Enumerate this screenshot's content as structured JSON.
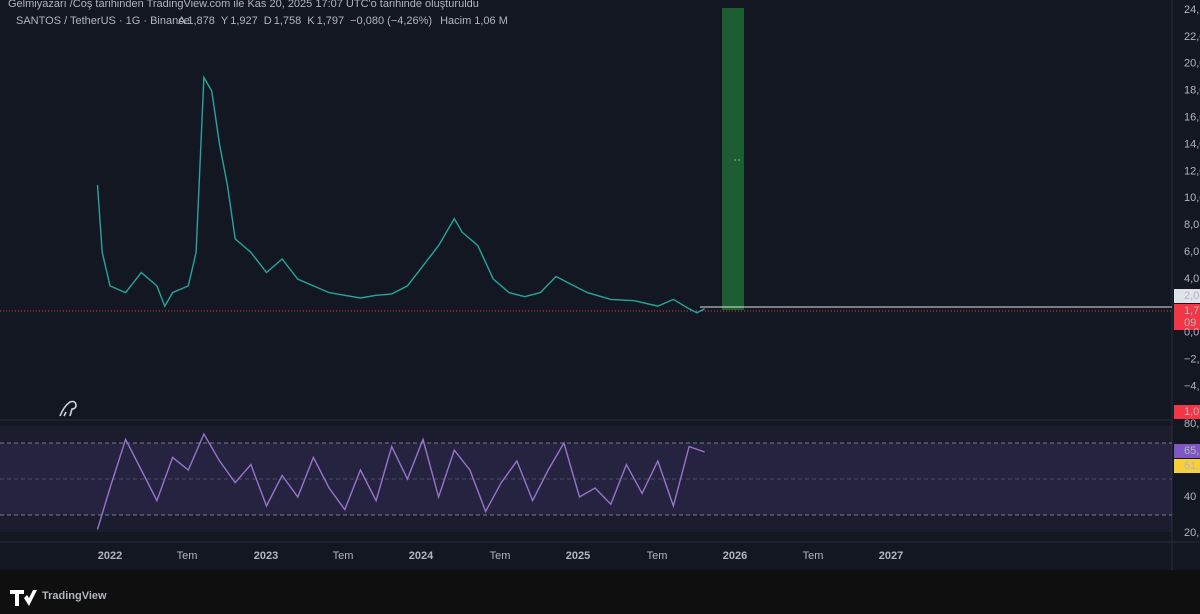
{
  "header": {
    "top_note": "Gelmiyazarı /Coş tarihinden TradingView.com ile Kas 20, 2025 17:07 UTC'o tarihinde oluşturuldu",
    "symbol": "SANTOS / TetherUS · 1G · Binance",
    "ohlc": [
      {
        "key": "A",
        "value": "1,878"
      },
      {
        "key": "Y",
        "value": "1,927"
      },
      {
        "key": "D",
        "value": "1,758"
      },
      {
        "key": "K",
        "value": "1,797"
      }
    ],
    "change": "−0,080 (−4,26%)",
    "volume_key": "Hacim",
    "volume": "1,06 M"
  },
  "price_axis": [
    "24,",
    "22,0",
    "20,0",
    "18,0",
    "16,0",
    "14,0",
    "12,0",
    "10,0",
    "8,0",
    "6,0",
    "4,0",
    "2,0",
    "0,0",
    "−2,",
    "−4,"
  ],
  "price_tags": {
    "level": "2,0",
    "last": "1,7",
    "countdown": "09",
    "volume": "1,0"
  },
  "rsi_axis": {
    "top": "80,",
    "mid": "40",
    "bottom": "20,",
    "rsi": "65,",
    "ma": "61,"
  },
  "time_axis": [
    "2022",
    "Tem",
    "2023",
    "Tem",
    "2024",
    "Tem",
    "2025",
    "Tem",
    "2026",
    "Tem",
    "2027"
  ],
  "price_series": {
    "x": [
      2021.92,
      2021.95,
      2022.0,
      2022.1,
      2022.2,
      2022.3,
      2022.35,
      2022.4,
      2022.5,
      2022.55,
      2022.6,
      2022.65,
      2022.7,
      2022.75,
      2022.8,
      2022.9,
      2023.0,
      2023.1,
      2023.2,
      2023.3,
      2023.4,
      2023.5,
      2023.6,
      2023.7,
      2023.8,
      2023.9,
      2024.0,
      2024.1,
      2024.2,
      2024.25,
      2024.35,
      2024.45,
      2024.55,
      2024.65,
      2024.75,
      2024.85,
      2024.95,
      2025.05,
      2025.2,
      2025.35,
      2025.5,
      2025.6,
      2025.7,
      2025.75,
      2025.8
    ],
    "values": [
      11,
      6,
      3.5,
      3,
      4.5,
      3.5,
      2,
      3,
      3.5,
      6,
      19,
      18,
      14,
      11,
      7,
      6,
      4.5,
      5.5,
      4,
      3.5,
      3,
      2.8,
      2.6,
      2.8,
      2.9,
      3.5,
      5,
      6.5,
      8.5,
      7.5,
      6.5,
      4,
      3,
      2.7,
      3,
      4.2,
      3.6,
      3,
      2.5,
      2.4,
      2,
      2.5,
      1.8,
      1.5,
      1.8
    ]
  },
  "rsi_series": {
    "x": [
      2021.92,
      2022.0,
      2022.1,
      2022.2,
      2022.3,
      2022.4,
      2022.5,
      2022.6,
      2022.7,
      2022.8,
      2022.9,
      2023.0,
      2023.1,
      2023.2,
      2023.3,
      2023.4,
      2023.5,
      2023.6,
      2023.7,
      2023.8,
      2023.9,
      2024.0,
      2024.1,
      2024.2,
      2024.3,
      2024.4,
      2024.5,
      2024.6,
      2024.7,
      2024.8,
      2024.9,
      2025.0,
      2025.1,
      2025.2,
      2025.3,
      2025.4,
      2025.5,
      2025.6,
      2025.7,
      2025.8
    ],
    "values": [
      22,
      45,
      72,
      55,
      38,
      62,
      55,
      75,
      60,
      48,
      58,
      35,
      52,
      40,
      62,
      45,
      33,
      55,
      38,
      68,
      50,
      72,
      40,
      66,
      55,
      32,
      48,
      60,
      38,
      55,
      70,
      40,
      45,
      36,
      58,
      42,
      60,
      35,
      68,
      65
    ]
  }
}
